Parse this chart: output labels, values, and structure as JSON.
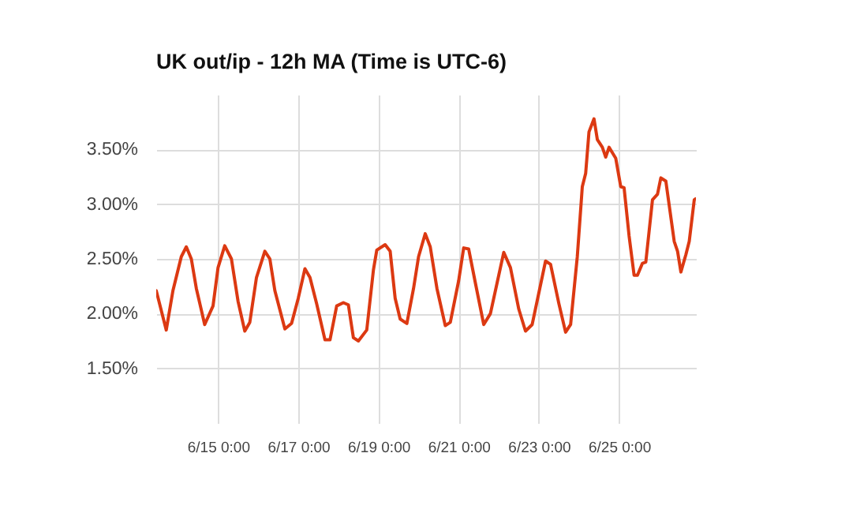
{
  "chart_data": {
    "type": "line",
    "title": "UK out/ip - 12h MA (Time is UTC-6)",
    "x": [
      "--06-13T11:00",
      "--06-13T17:00",
      "--06-13T21:00",
      "--06-14T02:00",
      "--06-14T05:00",
      "--06-14T08:00",
      "--06-14T11:00",
      "--06-14T16:00",
      "--06-14T21:00",
      "--06-15T00:00",
      "--06-15T04:00",
      "--06-15T08:00",
      "--06-15T12:00",
      "--06-15T16:00",
      "--06-15T19:00",
      "--06-15T23:00",
      "--06-16T04:00",
      "--06-16T07:00",
      "--06-16T10:00",
      "--06-16T16:00",
      "--06-16T20:00",
      "--06-17T00:00",
      "--06-17T04:00",
      "--06-17T07:00",
      "--06-17T11:00",
      "--06-17T16:00",
      "--06-17T19:00",
      "--06-17T23:00",
      "--06-18T03:00",
      "--06-18T06:00",
      "--06-18T09:00",
      "--06-18T12:00",
      "--06-18T17:00",
      "--06-18T21:00",
      "--06-18T23:00",
      "--06-19T04:00",
      "--06-19T07:00",
      "--06-19T10:00",
      "--06-19T13:00",
      "--06-19T17:00",
      "--06-19T21:00",
      "--06-20T00:00",
      "--06-20T04:00",
      "--06-20T07:00",
      "--06-20T11:00",
      "--06-20T16:00",
      "--06-20T19:00",
      "--06-21T00:00",
      "--06-21T03:00",
      "--06-21T06:00",
      "--06-21T10:00",
      "--06-21T15:00",
      "--06-21T19:00",
      "--06-21T23:00",
      "--06-22T03:00",
      "--06-22T07:00",
      "--06-22T12:00",
      "--06-22T16:00",
      "--06-22T20:00",
      "--06-23T00:00",
      "--06-23T04:00",
      "--06-23T07:00",
      "--06-23T12:00",
      "--06-23T16:00",
      "--06-23T19:00",
      "--06-23T23:00",
      "--06-24T02:00",
      "--06-24T04:00",
      "--06-24T06:00",
      "--06-24T09:00",
      "--06-24T11:00",
      "--06-24T14:00",
      "--06-24T16:00",
      "--06-24T18:00",
      "--06-24T22:00",
      "--06-25T01:00",
      "--06-25T03:00",
      "--06-25T06:00",
      "--06-25T09:00",
      "--06-25T11:00",
      "--06-25T14:00",
      "--06-25T16:00",
      "--06-25T20:00",
      "--06-25T23:00",
      "--06-26T01:00",
      "--06-26T04:00",
      "--06-26T09:00",
      "--06-26T11:00",
      "--06-26T13:00",
      "--06-26T16:00",
      "--06-26T18:00",
      "--06-26T21:00",
      "--06-26T22:00"
    ],
    "series": [
      {
        "color": "#dc3912",
        "values": [
          2.21,
          1.85,
          2.21,
          2.52,
          2.61,
          2.5,
          2.23,
          1.9,
          2.07,
          2.42,
          2.62,
          2.5,
          2.11,
          1.84,
          1.92,
          2.33,
          2.57,
          2.5,
          2.21,
          1.86,
          1.91,
          2.14,
          2.41,
          2.33,
          2.09,
          1.76,
          1.76,
          2.07,
          2.1,
          2.08,
          1.78,
          1.75,
          1.85,
          2.4,
          2.58,
          2.63,
          2.57,
          2.14,
          1.95,
          1.91,
          2.23,
          2.52,
          2.73,
          2.61,
          2.23,
          1.89,
          1.92,
          2.3,
          2.6,
          2.59,
          2.28,
          1.9,
          2.0,
          2.28,
          2.56,
          2.42,
          2.04,
          1.84,
          1.9,
          2.19,
          2.48,
          2.45,
          2.09,
          1.83,
          1.9,
          2.52,
          3.16,
          3.28,
          3.66,
          3.78,
          3.59,
          3.52,
          3.43,
          3.52,
          3.42,
          3.16,
          3.15,
          2.71,
          2.35,
          2.35,
          2.46,
          2.47,
          3.04,
          3.09,
          3.24,
          3.21,
          2.66,
          2.57,
          2.38,
          2.54,
          2.66,
          3.04,
          3.05
        ]
      }
    ],
    "xlim": [
      "--06-13T11:00",
      "--06-26T22:00"
    ],
    "xticks": [
      {
        "value": "--06-15T00:00",
        "label": "6/15 0:00"
      },
      {
        "value": "--06-17T00:00",
        "label": "6/17 0:00"
      },
      {
        "value": "--06-19T00:00",
        "label": "6/19 0:00"
      },
      {
        "value": "--06-21T00:00",
        "label": "6/21 0:00"
      },
      {
        "value": "--06-23T00:00",
        "label": "6/23 0:00"
      },
      {
        "value": "--06-25T00:00",
        "label": "6/25 0:00"
      }
    ],
    "ylim": [
      1.0,
      4.0
    ],
    "yticks": [
      {
        "value": 1.5,
        "label": "1.50%"
      },
      {
        "value": 2.0,
        "label": "2.00%"
      },
      {
        "value": 2.5,
        "label": "2.50%"
      },
      {
        "value": 3.0,
        "label": "3.00%"
      },
      {
        "value": 3.5,
        "label": "3.50%"
      }
    ],
    "grid": true,
    "marker": "none",
    "line_style": "solid"
  }
}
